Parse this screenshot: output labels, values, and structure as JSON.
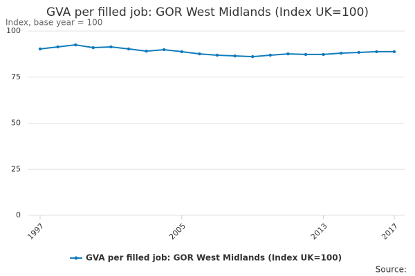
{
  "chart_data": {
    "type": "line",
    "title": "GVA per filled job: GOR West Midlands (Index UK=100)",
    "subtitle": "Index, base year = 100",
    "x": [
      1997,
      1998,
      1999,
      2000,
      2001,
      2002,
      2003,
      2004,
      2005,
      2006,
      2007,
      2008,
      2009,
      2010,
      2011,
      2012,
      2013,
      2014,
      2015,
      2016,
      2017
    ],
    "series": [
      {
        "name": "GVA per filled job: GOR West Midlands (Index UK=100)",
        "color": "#0f7bbd",
        "values": [
          90.3,
          91.4,
          92.5,
          91.0,
          91.4,
          90.3,
          89.1,
          89.9,
          88.8,
          87.6,
          86.9,
          86.5,
          86.1,
          86.9,
          87.6,
          87.3,
          87.3,
          88.0,
          88.4,
          88.8,
          88.8
        ]
      }
    ],
    "xlim": [
      1997,
      2017
    ],
    "xticks": [
      1997,
      2005,
      2013,
      2017
    ],
    "ylim": [
      0,
      100
    ],
    "yticks": [
      0,
      25,
      50,
      75,
      100
    ],
    "grid": true,
    "legend": "bottom",
    "source": "Source:"
  }
}
